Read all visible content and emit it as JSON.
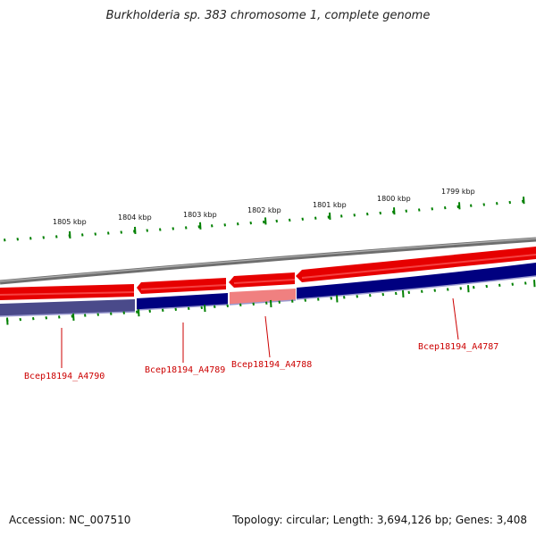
{
  "title": "Burkholderia sp. 383 chromosome 1, complete genome",
  "footer": {
    "accession": "Accession: NC_007510",
    "summary": "Topology: circular; Length: 3,694,126 bp; Genes: 3,408"
  },
  "colors": {
    "forward_strand": "#e60000",
    "reverse_strand": "#000080",
    "highlight_forward": "#f08080",
    "backbone": "#808080",
    "tick": "#008000",
    "label": "#cc0000"
  },
  "scale_labels": [
    "1805 kbp",
    "1804 kbp",
    "1803 kbp",
    "1802 kbp",
    "1801 kbp",
    "1800 kbp",
    "1799 kbp"
  ],
  "genes": [
    {
      "name": "Bcep18194_A4790"
    },
    {
      "name": "Bcep18194_A4789"
    },
    {
      "name": "Bcep18194_A4788"
    },
    {
      "name": "Bcep18194_A4787"
    }
  ]
}
